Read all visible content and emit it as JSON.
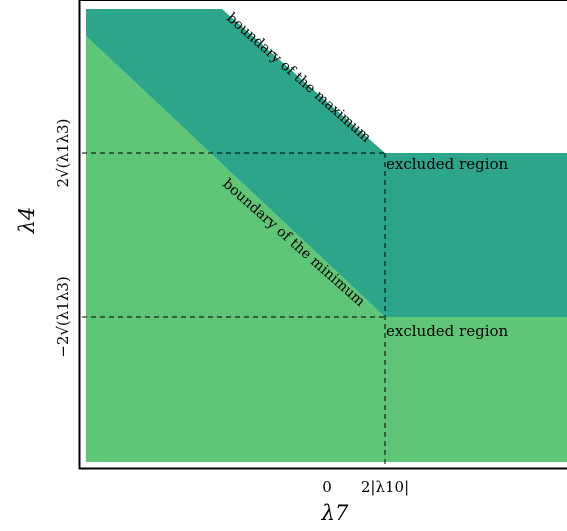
{
  "chart_data": {
    "type": "area",
    "xlabel": "λ7",
    "ylabel": "λ4",
    "x_ticks": [
      {
        "label": "0"
      },
      {
        "label": "2|λ10|"
      }
    ],
    "y_ticks": [
      {
        "label": "2√(λ1λ3)"
      },
      {
        "label": "−2√(λ1λ3)"
      }
    ],
    "regions": [
      {
        "name": "maximum-region",
        "color": "#2ca58a"
      },
      {
        "name": "minimum-region",
        "color": "#5fc577"
      }
    ],
    "annotations": {
      "max_boundary": "boundary of the maximum",
      "min_boundary": "boundary of the minimum",
      "excluded_upper": "excluded region",
      "excluded_lower": "excluded region"
    },
    "colors": {
      "axis": "#000000",
      "dashed": "#000000",
      "max_fill": "#2ca58a",
      "min_fill": "#5fc577"
    }
  }
}
